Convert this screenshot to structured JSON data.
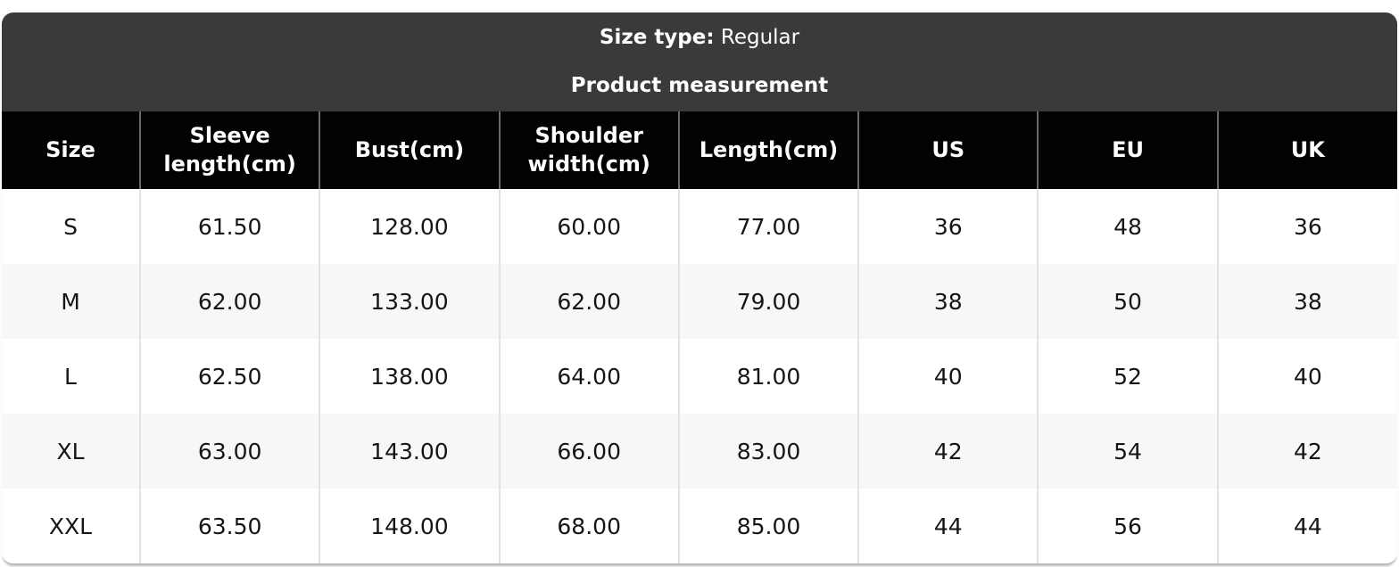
{
  "header": {
    "size_type_label": "Size type:",
    "size_type_value": "Regular",
    "title": "Product measurement"
  },
  "chart_data": {
    "type": "table",
    "title": "Product measurement",
    "size_type": "Regular",
    "columns": [
      "Size",
      "Sleeve length(cm)",
      "Bust(cm)",
      "Shoulder width(cm)",
      "Length(cm)",
      "US",
      "EU",
      "UK"
    ],
    "rows": [
      [
        "S",
        "61.50",
        "128.00",
        "60.00",
        "77.00",
        "36",
        "48",
        "36"
      ],
      [
        "M",
        "62.00",
        "133.00",
        "62.00",
        "79.00",
        "38",
        "50",
        "38"
      ],
      [
        "L",
        "62.50",
        "138.00",
        "64.00",
        "81.00",
        "40",
        "52",
        "40"
      ],
      [
        "XL",
        "63.00",
        "143.00",
        "66.00",
        "83.00",
        "42",
        "54",
        "42"
      ],
      [
        "XXL",
        "63.50",
        "148.00",
        "68.00",
        "85.00",
        "44",
        "56",
        "44"
      ]
    ]
  },
  "colors": {
    "panel_bg": "#3a3a3a",
    "header_bg": "#020202",
    "row_alt_bg": "#f7f7f7",
    "header_divider": "#6a6a6a",
    "body_divider": "#e2e2e2",
    "text_light": "#ffffff",
    "text_dark": "#151515"
  }
}
